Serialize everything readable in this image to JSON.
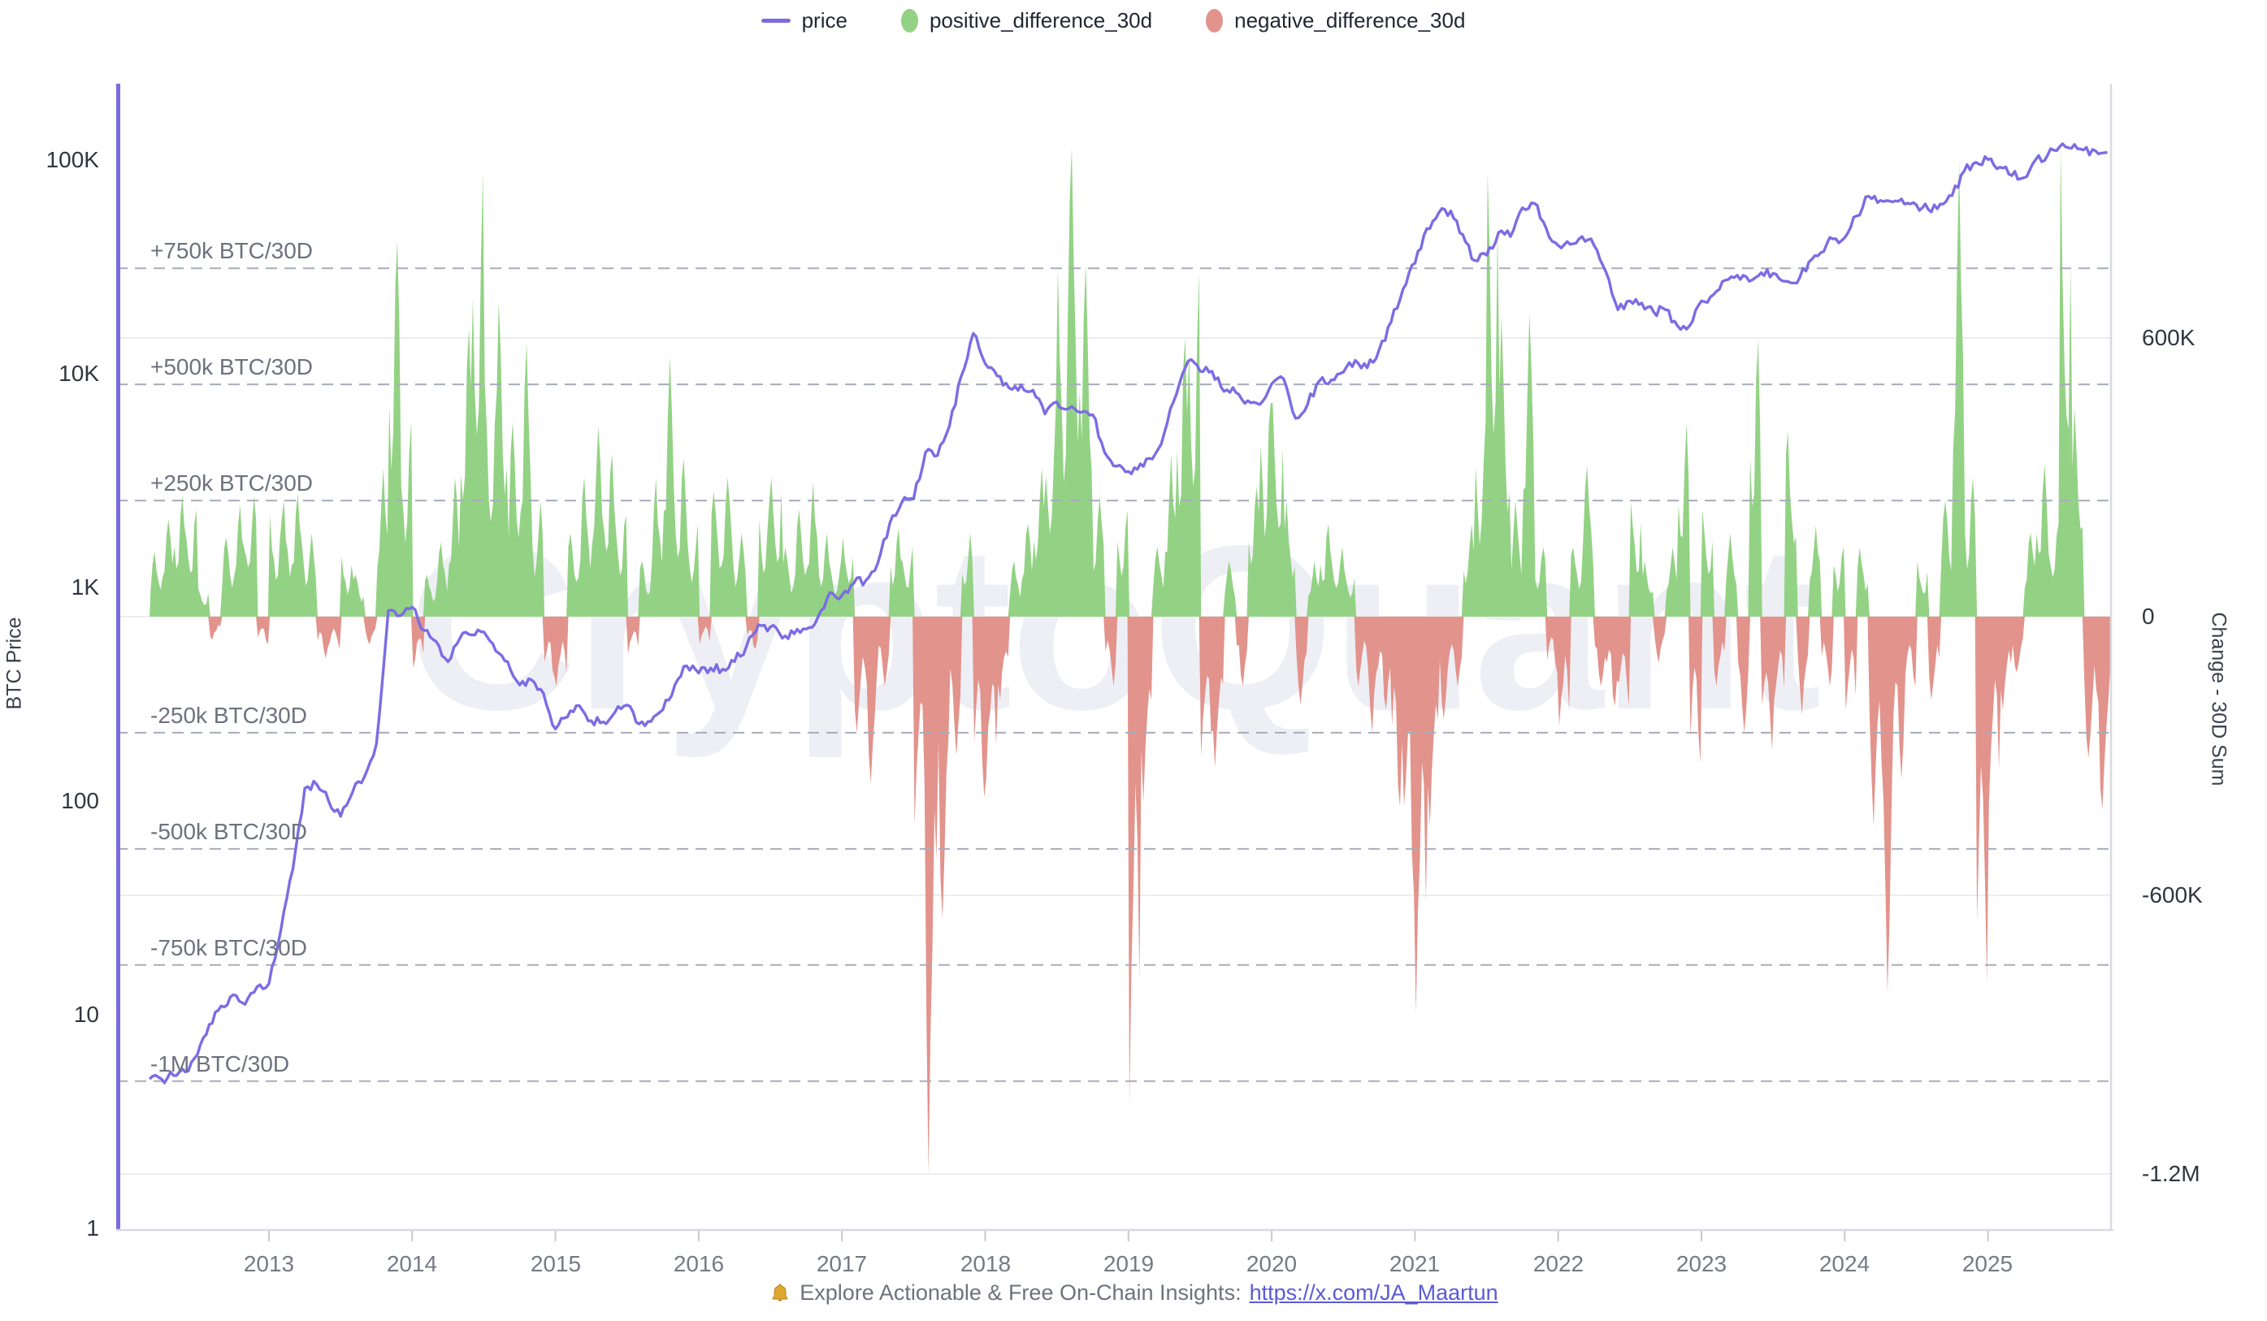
{
  "legend": {
    "items": [
      {
        "label": "price",
        "color": "#7b6ce4",
        "marker": "line"
      },
      {
        "label": "positive_difference_30d",
        "color": "#93d284",
        "marker": "ellipse"
      },
      {
        "label": "negative_difference_30d",
        "color": "#e2938c",
        "marker": "ellipse"
      }
    ]
  },
  "watermark": "CryptoQuant",
  "footer": {
    "text": "Explore Actionable & Free On-Chain Insights:",
    "link_label": "https://x.com/JA_Maartun",
    "bell_icon": "bell-icon"
  },
  "chart_data": {
    "type": "combo",
    "interval": "monthly",
    "start_month": "2012-03",
    "series": [
      {
        "name": "price",
        "type": "line",
        "color": "#7b6ce4",
        "y_axis": "price"
      },
      {
        "name": "positive_difference_30d",
        "type": "bar",
        "color": "#93d284",
        "y_axis": "change",
        "source": "difference_30d_thousand_btc positive values"
      },
      {
        "name": "negative_difference_30d",
        "type": "bar",
        "color": "#e2938c",
        "y_axis": "change",
        "source": "difference_30d_thousand_btc negative values"
      }
    ],
    "price_axis": {
      "title": "BTC Price",
      "scale": "log",
      "ticks": [
        "100K",
        "10K",
        "1K",
        "100",
        "10",
        "1"
      ],
      "range": [
        1,
        280000
      ]
    },
    "change_axis": {
      "title": "Change - 30D Sum",
      "ticks": [
        "600K",
        "0",
        "-600K",
        "-1.2M"
      ],
      "grid_values_k": [
        600,
        0,
        -600,
        -1200
      ],
      "range_k": [
        -1320,
        1190
      ]
    },
    "threshold_lines": [
      {
        "label": "+750k BTC/30D",
        "value_k": 750
      },
      {
        "label": "+500k BTC/30D",
        "value_k": 500
      },
      {
        "label": "+250k BTC/30D",
        "value_k": 250
      },
      {
        "label": "-250k BTC/30D",
        "value_k": -250
      },
      {
        "label": "-500k BTC/30D",
        "value_k": -500
      },
      {
        "label": "-750k BTC/30D",
        "value_k": -750
      },
      {
        "label": "-1M BTC/30D",
        "value_k": -1000
      }
    ],
    "x_tick_labels": [
      "2013",
      "2014",
      "2015",
      "2016",
      "2017",
      "2018",
      "2019",
      "2020",
      "2021",
      "2022",
      "2023",
      "2024",
      "2025"
    ],
    "price_usd": [
      5,
      5,
      5.2,
      5.4,
      6.5,
      9,
      11,
      12.4,
      11.2,
      13.5,
      14,
      25,
      48,
      115,
      120,
      100,
      85,
      110,
      130,
      185,
      780,
      740,
      810,
      630,
      560,
      450,
      580,
      600,
      620,
      505,
      450,
      350,
      370,
      320,
      218,
      248,
      280,
      238,
      235,
      262,
      282,
      230,
      236,
      268,
      350,
      430,
      398,
      420,
      415,
      450,
      532,
      670,
      655,
      580,
      608,
      640,
      730,
      950,
      920,
      1050,
      1080,
      1300,
      2000,
      2500,
      2600,
      4300,
      4150,
      5700,
      9800,
      15500,
      11200,
      9800,
      8600,
      8900,
      8400,
      6500,
      7400,
      6900,
      6600,
      6450,
      4300,
      3700,
      3500,
      3800,
      4000,
      5300,
      8000,
      11500,
      10300,
      10300,
      8300,
      8200,
      7500,
      7200,
      9000,
      9500,
      6200,
      7200,
      9300,
      9400,
      10200,
      11600,
      10700,
      13000,
      17500,
      25000,
      33000,
      48000,
      57000,
      58000,
      45000,
      34000,
      36000,
      46000,
      44000,
      60000,
      63000,
      48000,
      40000,
      40500,
      44000,
      40000,
      30000,
      20000,
      22000,
      21500,
      19500,
      20000,
      16800,
      16800,
      22000,
      23500,
      27500,
      29000,
      27200,
      29800,
      29600,
      27200,
      26700,
      33500,
      37000,
      43000,
      43500,
      55000,
      68000,
      65000,
      64000,
      62500,
      62000,
      59000,
      62500,
      68500,
      89000,
      98000,
      101000,
      93000,
      85000,
      83000,
      101000,
      106000,
      116000,
      114000,
      112000,
      111000,
      109000
    ],
    "difference_30d_thousand_btc": [
      140,
      210,
      260,
      230,
      60,
      -50,
      170,
      240,
      260,
      -60,
      220,
      250,
      265,
      180,
      -90,
      -70,
      130,
      90,
      -60,
      320,
      810,
      420,
      -110,
      90,
      160,
      300,
      620,
      960,
      500,
      680,
      420,
      590,
      250,
      -130,
      -150,
      180,
      300,
      410,
      350,
      220,
      -80,
      120,
      300,
      560,
      340,
      200,
      -60,
      270,
      300,
      180,
      -70,
      250,
      300,
      150,
      230,
      290,
      180,
      120,
      170,
      -250,
      -360,
      -150,
      190,
      150,
      -450,
      -1200,
      -650,
      -300,
      180,
      -390,
      -350,
      -180,
      120,
      200,
      320,
      450,
      750,
      1010,
      760,
      260,
      -150,
      230,
      -1050,
      -400,
      150,
      350,
      600,
      740,
      -300,
      -325,
      120,
      -150,
      280,
      460,
      460,
      250,
      -190,
      120,
      200,
      150,
      100,
      -150,
      -250,
      -200,
      -410,
      -600,
      -854,
      -450,
      -220,
      -150,
      200,
      420,
      957,
      650,
      250,
      653,
      150,
      -120,
      -236,
      150,
      325,
      -150,
      -192,
      -192,
      247,
      120,
      -100,
      150,
      418,
      -315,
      231,
      -150,
      180,
      -250,
      595,
      -287,
      -180,
      399,
      -212,
      196,
      -150,
      150,
      -200,
      150,
      -450,
      -810,
      -350,
      -150,
      120,
      -180,
      250,
      981,
      300,
      -790,
      -400,
      -200,
      -120,
      180,
      329,
      200,
      1013,
      450,
      -304,
      -415,
      -300
    ]
  }
}
